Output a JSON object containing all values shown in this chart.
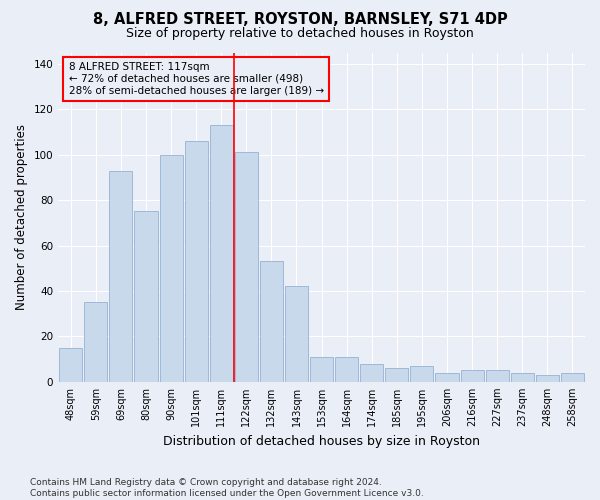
{
  "title": "8, ALFRED STREET, ROYSTON, BARNSLEY, S71 4DP",
  "subtitle": "Size of property relative to detached houses in Royston",
  "xlabel": "Distribution of detached houses by size in Royston",
  "ylabel": "Number of detached properties",
  "categories": [
    "48sqm",
    "59sqm",
    "69sqm",
    "80sqm",
    "90sqm",
    "101sqm",
    "111sqm",
    "122sqm",
    "132sqm",
    "143sqm",
    "153sqm",
    "164sqm",
    "174sqm",
    "185sqm",
    "195sqm",
    "206sqm",
    "216sqm",
    "227sqm",
    "237sqm",
    "248sqm",
    "258sqm"
  ],
  "values": [
    15,
    35,
    93,
    75,
    100,
    106,
    113,
    101,
    53,
    42,
    11,
    11,
    8,
    6,
    7,
    4,
    5,
    5,
    4,
    3,
    4
  ],
  "bar_color": "#c9d9ec",
  "bar_edge_color": "#a0b8d8",
  "vline_x_index": 6.5,
  "vline_color": "red",
  "annotation_line1": "8 ALFRED STREET: 117sqm",
  "annotation_line2": "← 72% of detached houses are smaller (498)",
  "annotation_line3": "28% of semi-detached houses are larger (189) →",
  "annotation_box_color": "red",
  "ylim": [
    0,
    145
  ],
  "yticks": [
    0,
    20,
    40,
    60,
    80,
    100,
    120,
    140
  ],
  "background_color": "#eaeef7",
  "grid_color": "white",
  "footer": "Contains HM Land Registry data © Crown copyright and database right 2024.\nContains public sector information licensed under the Open Government Licence v3.0.",
  "title_fontsize": 10.5,
  "subtitle_fontsize": 9,
  "ylabel_fontsize": 8.5,
  "xlabel_fontsize": 9,
  "tick_fontsize": 7,
  "footer_fontsize": 6.5
}
